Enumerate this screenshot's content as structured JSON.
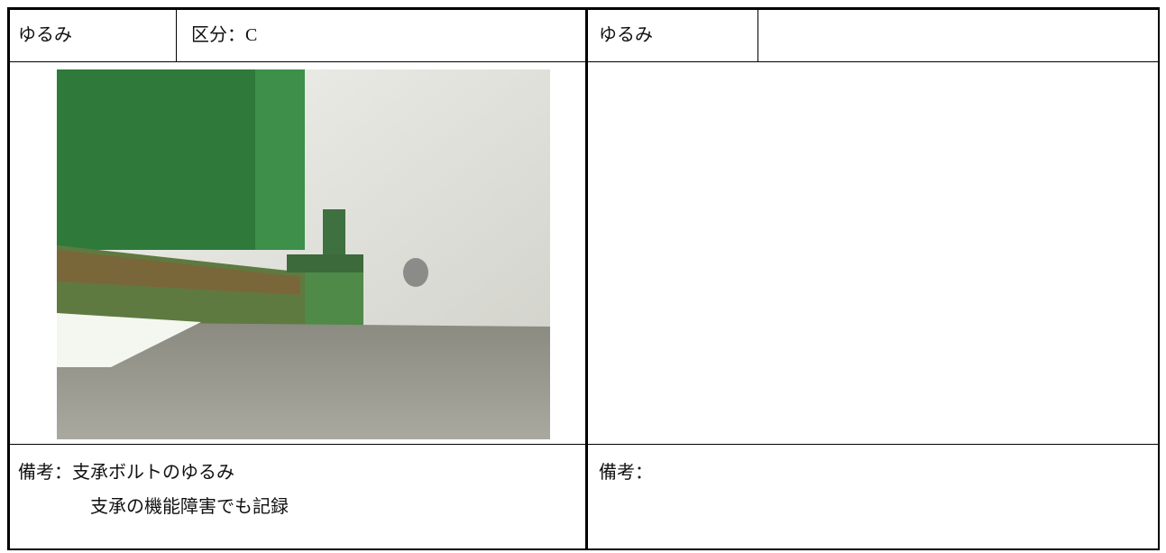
{
  "left": {
    "header": [
      "ゆるみ",
      "区分：C"
    ],
    "remarks": [
      "備考：支承ボルトのゆるみ",
      "支承の機能障害でも記録"
    ]
  },
  "right": {
    "header": [
      "ゆるみ"
    ],
    "remarks": [
      "備考："
    ]
  }
}
